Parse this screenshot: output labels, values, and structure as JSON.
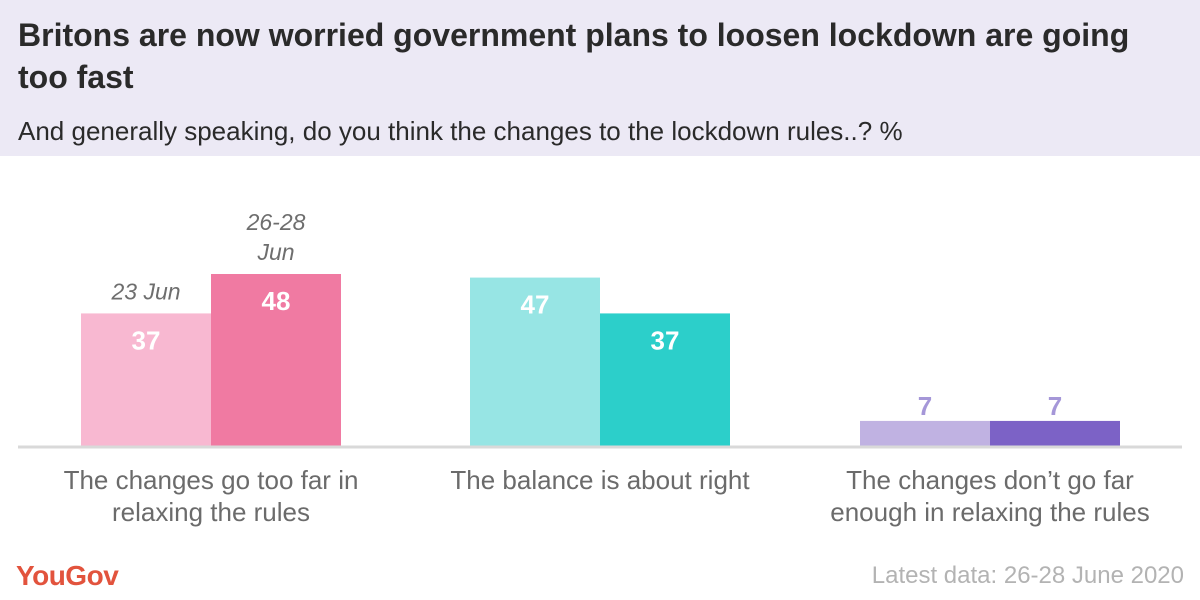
{
  "title": "Britons are now worried government plans to loosen lockdown are going too fast",
  "subtitle": "And generally speaking, do you think the changes to the lockdown rules..? %",
  "logo_text": "YouGov",
  "source_note": "Latest data: 26-28 June 2020",
  "chart_data": {
    "type": "bar",
    "categories": [
      [
        "The changes go too far in",
        "relaxing the rules"
      ],
      [
        "The balance is about right"
      ],
      [
        "The changes don’t go far",
        "enough in relaxing the rules"
      ]
    ],
    "series": [
      {
        "name": "23 Jun",
        "values": [
          37,
          47,
          7
        ],
        "colors": [
          "#f8b8d1",
          "#97e5e4",
          "#c0b2e2"
        ]
      },
      {
        "name": "26-28 Jun",
        "values": [
          48,
          37,
          7
        ],
        "colors": [
          "#f07aa2",
          "#2ccfca",
          "#7c62c6"
        ]
      }
    ],
    "value_label_colors": [
      "#ffffff",
      "#ffffff",
      "#a597d8"
    ],
    "series_label_category": 0,
    "ylim": [
      0,
      48
    ],
    "grid": false,
    "axis_line_color": "#d9d9d9"
  }
}
